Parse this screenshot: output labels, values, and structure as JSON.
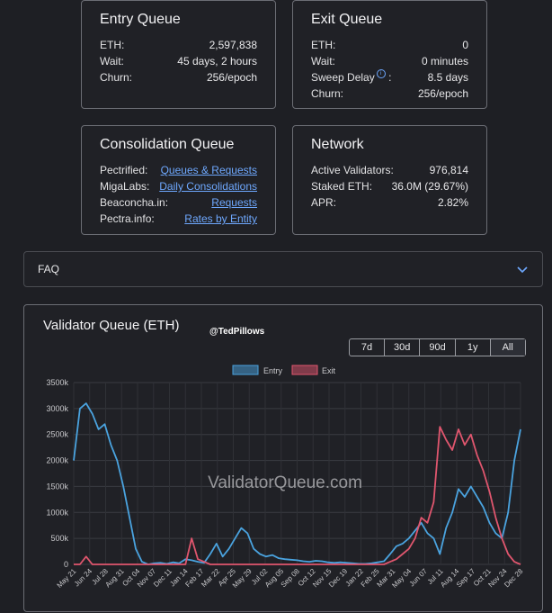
{
  "entry_queue": {
    "title": "Entry Queue",
    "rows": [
      {
        "label": "ETH:",
        "value": "2,597,838"
      },
      {
        "label": "Wait:",
        "value": "45 days, 2 hours"
      },
      {
        "label": "Churn:",
        "value": "256/epoch"
      }
    ]
  },
  "exit_queue": {
    "title": "Exit Queue",
    "rows": [
      {
        "label": "ETH:",
        "value": "0"
      },
      {
        "label": "Wait:",
        "value": "0 minutes"
      },
      {
        "label": "Sweep Delay",
        "value": "8.5 days"
      },
      {
        "label": "Churn:",
        "value": "256/epoch"
      }
    ],
    "sweep_suffix": ":"
  },
  "consolidation_queue": {
    "title": "Consolidation Queue",
    "rows": [
      {
        "label": "Pectrified:",
        "link": "Queues & Requests"
      },
      {
        "label": "MigaLabs:",
        "link": "Daily Consolidations"
      },
      {
        "label": "Beaconcha.in:",
        "link": "Requests"
      },
      {
        "label": "Pectra.info:",
        "link": "Rates by Entity"
      }
    ]
  },
  "network": {
    "title": "Network",
    "rows": [
      {
        "label": "Active Validators:",
        "value": "976,814"
      },
      {
        "label": "Staked ETH:",
        "value": "36.0M (29.67%)"
      },
      {
        "label": "APR:",
        "value": "2.82%"
      }
    ]
  },
  "faq": {
    "label": "FAQ"
  },
  "chart_card": {
    "title": "Validator Queue (ETH)",
    "handle": "@TedPillows",
    "watermark": "ValidatorQueue.com",
    "ranges": [
      "7d",
      "30d",
      "90d",
      "1y",
      "All"
    ],
    "selected_range": "All"
  },
  "colors": {
    "entry": "#4aa3df",
    "exit": "#e0566e",
    "link": "#6ea8fe"
  },
  "chart_data": {
    "type": "line",
    "ylim": [
      0,
      3500
    ],
    "yticks": [
      "0",
      "500k",
      "1000k",
      "1500k",
      "2000k",
      "2500k",
      "3000k",
      "3500k"
    ],
    "xticks": [
      "May 21",
      "Jun 24",
      "Jul 28",
      "Aug 31",
      "Oct 04",
      "Nov 07",
      "Dec 11",
      "Jan 14",
      "Feb 17",
      "Mar 22",
      "Apr 25",
      "May 29",
      "Jul 02",
      "Aug 05",
      "Sep 08",
      "Oct 12",
      "Nov 15",
      "Dec 19",
      "Jan 22",
      "Feb 25",
      "Mar 31",
      "May 04",
      "Jun 07",
      "Jul 11",
      "Aug 14",
      "Sep 17",
      "Oct 21",
      "Nov 24",
      "Dec 28"
    ],
    "series": [
      {
        "name": "Entry",
        "values": [
          2000,
          3000,
          3100,
          2900,
          2600,
          2700,
          2300,
          2000,
          1500,
          900,
          300,
          50,
          0,
          20,
          30,
          10,
          40,
          20,
          100,
          80,
          50,
          30,
          200,
          400,
          150,
          300,
          500,
          700,
          600,
          300,
          200,
          150,
          180,
          120,
          100,
          90,
          80,
          60,
          50,
          70,
          60,
          40,
          30,
          40,
          30,
          20,
          10,
          10,
          20,
          40,
          60,
          200,
          350,
          400,
          500,
          650,
          800,
          600,
          500,
          200,
          700,
          1000,
          1450,
          1300,
          1500,
          1300,
          1100,
          800,
          600,
          500,
          1000,
          2000,
          2600
        ]
      },
      {
        "name": "Exit",
        "values": [
          0,
          0,
          150,
          0,
          0,
          0,
          0,
          0,
          0,
          0,
          0,
          0,
          0,
          0,
          0,
          0,
          0,
          0,
          0,
          500,
          100,
          50,
          0,
          0,
          0,
          0,
          0,
          0,
          0,
          0,
          0,
          0,
          0,
          0,
          0,
          0,
          0,
          0,
          0,
          0,
          0,
          0,
          0,
          0,
          0,
          0,
          0,
          0,
          0,
          0,
          0,
          50,
          100,
          200,
          300,
          500,
          900,
          800,
          1200,
          2650,
          2400,
          2200,
          2600,
          2300,
          2500,
          2100,
          1800,
          1400,
          900,
          500,
          200,
          50,
          0
        ]
      }
    ]
  }
}
